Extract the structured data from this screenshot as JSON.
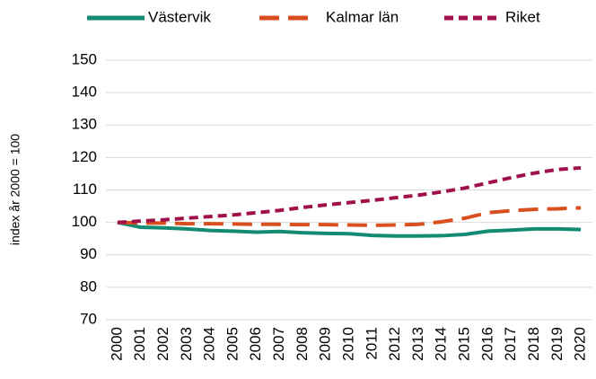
{
  "chart_data": {
    "type": "line",
    "ylabel": "index år 2000 = 100",
    "categories": [
      "2000",
      "2001",
      "2002",
      "2003",
      "2004",
      "2005",
      "2006",
      "2007",
      "2008",
      "2009",
      "2010",
      "2011",
      "2012",
      "2013",
      "2014",
      "2015",
      "2016",
      "2017",
      "2018",
      "2019",
      "2020"
    ],
    "series": [
      {
        "name": "Västervik",
        "color": "#138a72",
        "linestyle": "solid",
        "values": [
          100,
          98.5,
          98.3,
          98,
          97.5,
          97.3,
          97,
          97.2,
          96.8,
          96.6,
          96.5,
          96,
          95.8,
          95.8,
          95.9,
          96.3,
          97.3,
          97.6,
          98,
          98,
          97.8
        ]
      },
      {
        "name": "Kalmar län",
        "color": "#d9501e",
        "linestyle": "dashed",
        "values": [
          100,
          99.8,
          99.8,
          99.6,
          99.6,
          99.5,
          99.4,
          99.4,
          99.3,
          99.3,
          99.2,
          99.1,
          99.2,
          99.4,
          100.2,
          101.3,
          103,
          103.6,
          104,
          104.2,
          104.5
        ]
      },
      {
        "name": "Riket",
        "color": "#a0104a",
        "linestyle": "short-dashed",
        "values": [
          100,
          100.4,
          100.8,
          101.3,
          101.8,
          102.3,
          103,
          103.7,
          104.6,
          105.4,
          106.1,
          106.8,
          107.6,
          108.4,
          109.4,
          110.6,
          112.2,
          113.8,
          115.2,
          116.3,
          116.8
        ]
      }
    ],
    "ylim": [
      70,
      150
    ],
    "yticks": [
      70,
      80,
      90,
      100,
      110,
      120,
      130,
      140,
      150
    ],
    "grid": true,
    "legend": "top"
  }
}
